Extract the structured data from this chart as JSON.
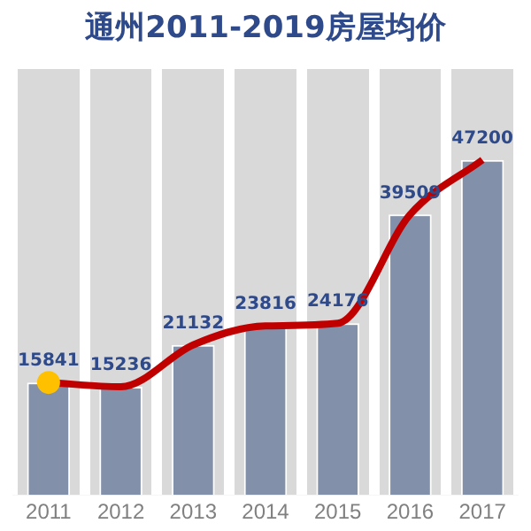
{
  "chart_data": {
    "type": "bar",
    "title": "通州2011-2019房屋均价",
    "categories": [
      "2011",
      "2012",
      "2013",
      "2014",
      "2015",
      "2016",
      "2017"
    ],
    "series": [
      {
        "color": "#8290aa",
        "values": [
          15841,
          15236,
          21132,
          23816,
          24176,
          39509,
          47200
        ],
        "value_labels": [
          "15841",
          "15236",
          "21132",
          "23816",
          "24176",
          "39509",
          "47200"
        ]
      },
      {
        "type": "line",
        "color": "#c00000",
        "values": [
          15841,
          15236,
          21132,
          23816,
          24176,
          39509,
          47200
        ]
      },
      {
        "type": "scatter",
        "color": "#ffc000",
        "values": [
          15841,
          null,
          null,
          null,
          null,
          null,
          null
        ]
      }
    ],
    "grid": "x",
    "tick_labels": "x"
  }
}
